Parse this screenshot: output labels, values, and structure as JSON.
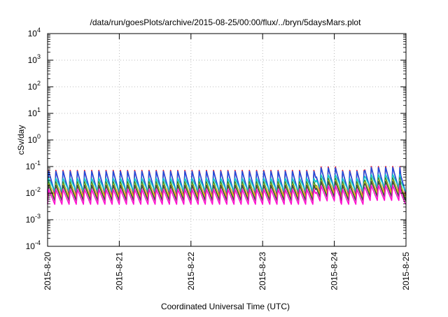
{
  "chart_data": {
    "type": "line",
    "title": "/data/run/goesPlots/archive/2015-08-25/00:00/flux/../bryn/5daysMars.plot",
    "xlabel": "Coordinated Universal Time (UTC)",
    "ylabel": "cSv/day",
    "yscale": "log",
    "ylim": [
      0.0001,
      10000
    ],
    "xlim": [
      "2015-8-20",
      "2015-8-25"
    ],
    "x_ticks": [
      "2015-8-20",
      "2015-8-21",
      "2015-8-22",
      "2015-8-23",
      "2015-8-24",
      "2015-8-25"
    ],
    "y_ticks": [
      {
        "base": "10",
        "exp": "-4",
        "value": 0.0001
      },
      {
        "base": "10",
        "exp": "-3",
        "value": 0.001
      },
      {
        "base": "10",
        "exp": "-2",
        "value": 0.01
      },
      {
        "base": "10",
        "exp": "-1",
        "value": 0.1
      },
      {
        "base": "10",
        "exp": "0",
        "value": 1
      },
      {
        "base": "10",
        "exp": "1",
        "value": 10
      },
      {
        "base": "10",
        "exp": "2",
        "value": 100
      },
      {
        "base": "10",
        "exp": "3",
        "value": 1000
      },
      {
        "base": "10",
        "exp": "4",
        "value": 10000
      }
    ],
    "grid": true,
    "legend": "none",
    "pattern": {
      "cycles_per_day": 10,
      "days": 5
    },
    "series": [
      {
        "color": "#e8132b",
        "peak": 0.072,
        "trough": 0.0085,
        "rise_fraction": 0.15
      },
      {
        "color": "#1f4fe0",
        "peak": 0.066,
        "trough": 0.0105,
        "rise_fraction": 0.15
      },
      {
        "color": "#10c8c8",
        "peak": 0.036,
        "trough": 0.0118,
        "rise_fraction": 0.15
      },
      {
        "color": "#2e8b2e",
        "peak": 0.027,
        "trough": 0.0062,
        "rise_fraction": 0.15
      },
      {
        "color": "#d0d010",
        "peak": 0.022,
        "trough": 0.007,
        "rise_fraction": 0.15
      },
      {
        "color": "#444444",
        "peak": 0.02,
        "trough": 0.0052,
        "rise_fraction": 0.15
      },
      {
        "color": "#ff10d0",
        "peak": 0.014,
        "trough": 0.0038,
        "rise_fraction": 0.15
      }
    ],
    "enhanced_intervals": [
      {
        "start": "2015-8-23T18:00",
        "end": "2015-8-24T02:00",
        "factor": 1.35
      },
      {
        "start": "2015-8-24T10:00",
        "end": "2015-8-24T22:00",
        "factor": 1.4
      },
      {
        "start": "2015-8-24T22:00",
        "end": "2015-8-25T00:00",
        "factor": 0.9
      }
    ]
  }
}
